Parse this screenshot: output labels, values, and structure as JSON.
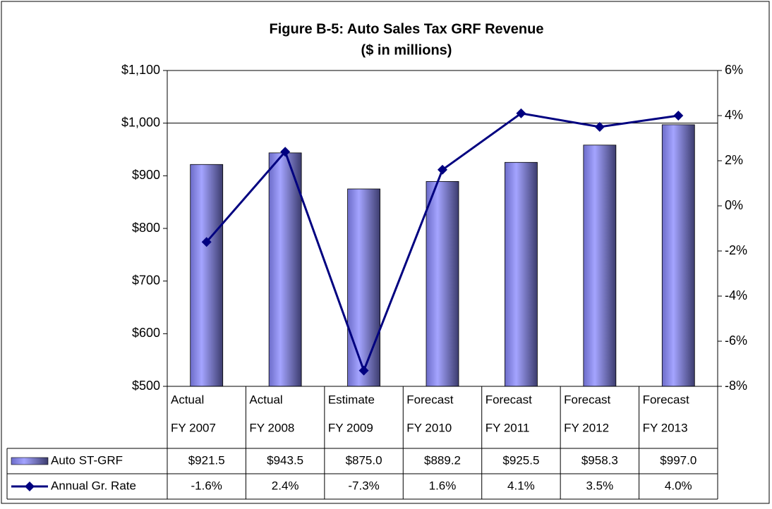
{
  "chart_data": {
    "type": "bar_line_table",
    "title": "Figure B-5: Auto Sales Tax GRF Revenue",
    "subtitle": "($ in millions)",
    "categories": [
      [
        "Actual",
        "FY 2007"
      ],
      [
        "Actual",
        "FY 2008"
      ],
      [
        "Estimate",
        "FY 2009"
      ],
      [
        "Forecast",
        "FY 2010"
      ],
      [
        "Forecast",
        "FY 2011"
      ],
      [
        "Forecast",
        "FY 2012"
      ],
      [
        "Forecast",
        "FY 2013"
      ]
    ],
    "series": [
      {
        "name": "Auto ST-GRF",
        "type": "bar",
        "color": "#9999ff",
        "values": [
          921.5,
          943.5,
          875.0,
          889.2,
          925.5,
          958.3,
          997.0
        ],
        "value_labels": [
          "$921.5",
          "$943.5",
          "$875.0",
          "$889.2",
          "$925.5",
          "$958.3",
          "$997.0"
        ]
      },
      {
        "name": "Annual Gr. Rate",
        "type": "line",
        "color": "#000080",
        "axis": "y2",
        "values": [
          -1.6,
          2.4,
          -7.3,
          1.6,
          4.1,
          3.5,
          4.0
        ],
        "value_labels": [
          "-1.6%",
          "2.4%",
          "-7.3%",
          "1.6%",
          "4.1%",
          "3.5%",
          "4.0%"
        ]
      }
    ],
    "ylim": [
      500,
      1100
    ],
    "yticks": [
      {
        "value": 500,
        "label": "$500"
      },
      {
        "value": 600,
        "label": "$600"
      },
      {
        "value": 700,
        "label": "$700"
      },
      {
        "value": 800,
        "label": "$800"
      },
      {
        "value": 900,
        "label": "$900"
      },
      {
        "value": 1000,
        "label": "$1,000"
      },
      {
        "value": 1100,
        "label": "$1,100"
      }
    ],
    "y2lim": [
      -8,
      6
    ],
    "y2ticks": [
      {
        "value": -8,
        "label": "-8%"
      },
      {
        "value": -6,
        "label": "-6%"
      },
      {
        "value": -4,
        "label": "-4%"
      },
      {
        "value": -2,
        "label": "-2%"
      },
      {
        "value": 0,
        "label": "0%"
      },
      {
        "value": 2,
        "label": "2%"
      },
      {
        "value": 4,
        "label": "4%"
      },
      {
        "value": 6,
        "label": "6%"
      }
    ],
    "grid_lines": [
      1000
    ]
  }
}
